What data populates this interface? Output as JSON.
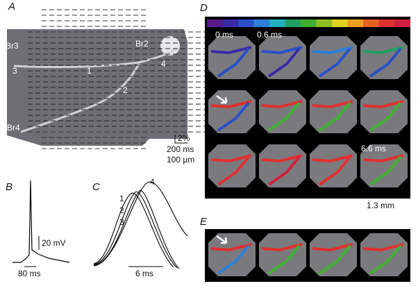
{
  "panels": {
    "a": {
      "label": "A",
      "branch_labels": [
        "Br3",
        "Br2",
        "Br4"
      ],
      "site_labels": [
        "3",
        "1",
        "4",
        "2"
      ],
      "scale": [
        "2%",
        "200 ms",
        "100 µm"
      ]
    },
    "b": {
      "label": "B",
      "scale": [
        "20 mV",
        "80 ms"
      ]
    },
    "c": {
      "label": "C",
      "trace_labels": [
        "1",
        "2",
        "3",
        "4"
      ],
      "scale": "6 ms"
    },
    "d": {
      "label": "D",
      "time_labels": [
        "0 ms",
        "0.6 ms",
        "6.6 ms"
      ],
      "scale": "1.3 mm"
    },
    "e": {
      "label": "E"
    }
  }
}
